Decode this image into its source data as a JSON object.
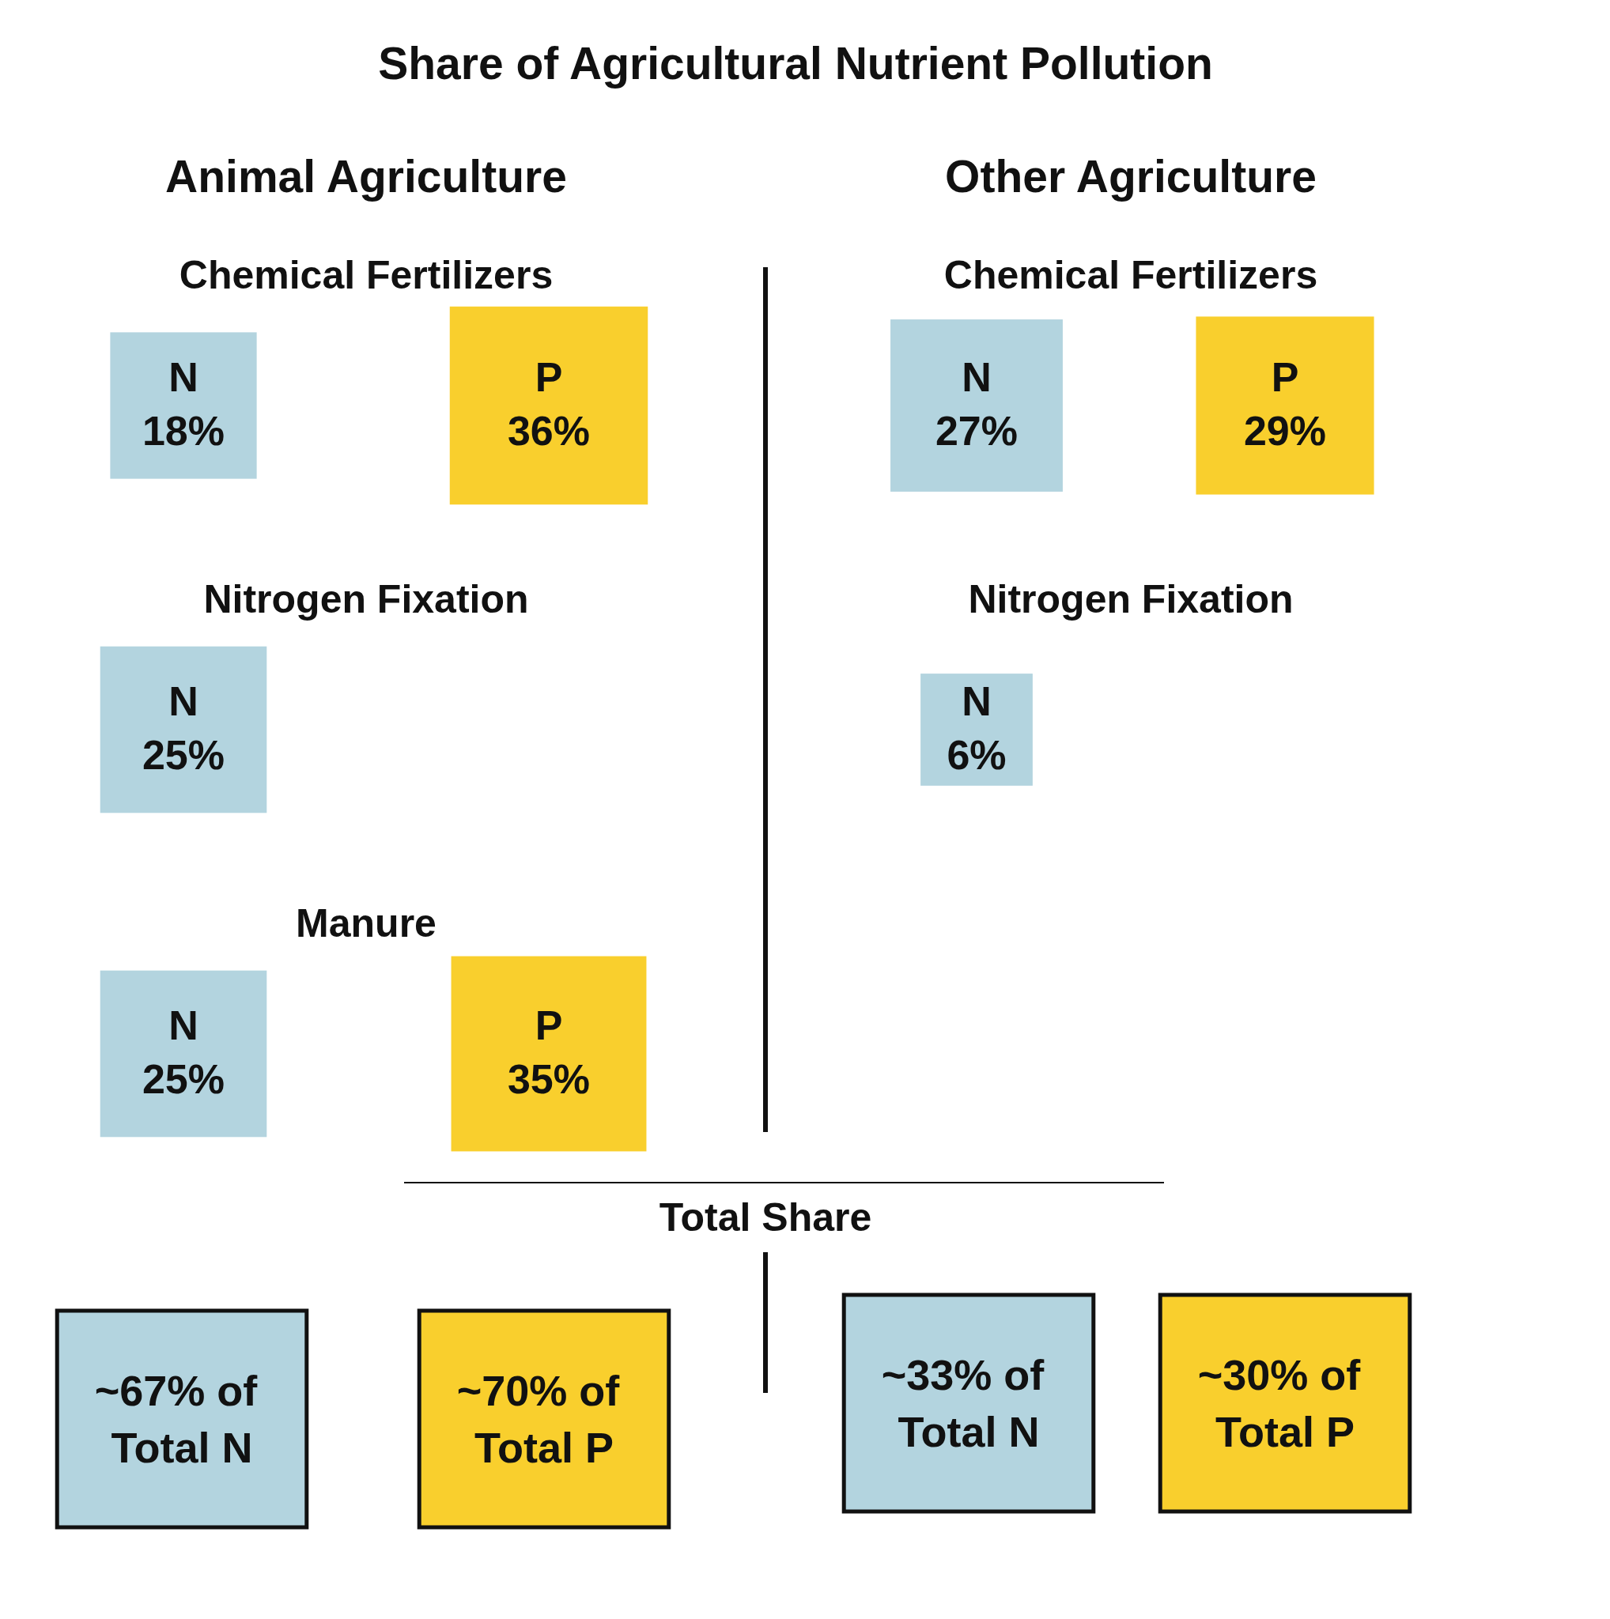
{
  "chart_data": [
    {
      "type": "other",
      "title": "Share of Agricultural Nutrient Pollution",
      "subtitle": "Animal Agriculture",
      "categories": [
        "Chemical Fertilizers",
        "Nitrogen Fixation",
        "Manure"
      ],
      "series": [
        {
          "name": "N",
          "color": "#b3d4df",
          "values": [
            18,
            25,
            25
          ],
          "value_labels": [
            "18%",
            "25%",
            "25%"
          ]
        },
        {
          "name": "P",
          "color": "#f9cf2d",
          "values": [
            36,
            null,
            35
          ],
          "value_labels": [
            "36%",
            null,
            "35%"
          ]
        }
      ]
    },
    {
      "type": "other",
      "subtitle": "Other Agriculture",
      "categories": [
        "Chemical Fertilizers",
        "Nitrogen Fixation"
      ],
      "series": [
        {
          "name": "N",
          "color": "#b3d4df",
          "values": [
            27,
            6
          ],
          "value_labels": [
            "27%",
            "6%"
          ]
        },
        {
          "name": "P",
          "color": "#f9cf2d",
          "values": [
            29,
            null
          ],
          "value_labels": [
            "29%",
            null
          ]
        }
      ]
    },
    {
      "type": "other",
      "title": "Total Share",
      "annotations": [
        "~67% of Total N",
        "~70% of Total P",
        "~33% of Total N",
        "~30% of Total P"
      ],
      "colors": [
        "#b3d4df",
        "#f9cf2d",
        "#b3d4df",
        "#f9cf2d"
      ]
    }
  ]
}
